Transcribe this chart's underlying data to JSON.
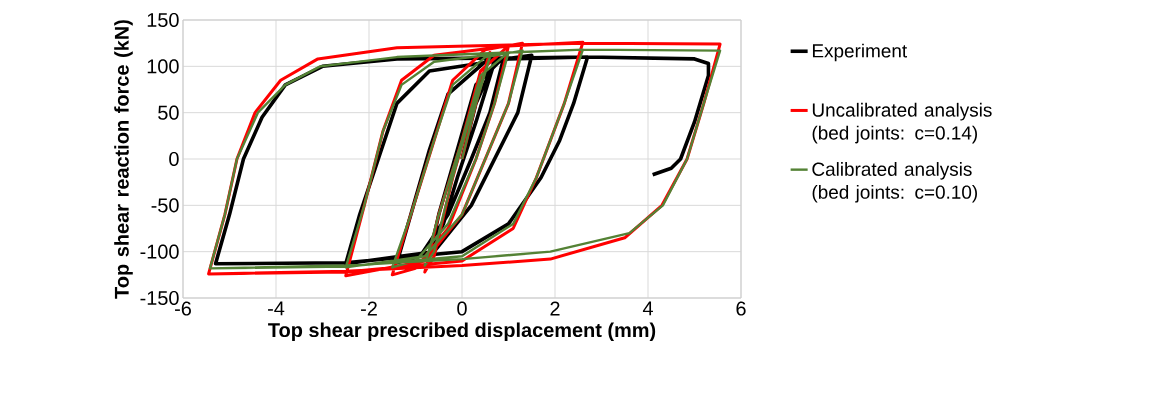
{
  "chart_data": {
    "type": "line",
    "xlabel": "Top shear prescribed displacement (mm)",
    "ylabel": "Top shear reaction force (kN)",
    "xlim": [
      -6,
      6
    ],
    "ylim": [
      -150,
      150
    ],
    "xticks": [
      -6,
      -4,
      -2,
      0,
      2,
      4,
      6
    ],
    "yticks": [
      -150,
      -100,
      -50,
      0,
      50,
      100,
      150
    ],
    "grid": true,
    "legend": "right",
    "marker": "none",
    "line_style": "solid",
    "series": [
      {
        "name": "Experiment",
        "color": "#000000",
        "x": [
          0,
          0.3,
          0.7,
          0.3,
          -0.1,
          -0.4,
          -0.7,
          -0.5,
          -0.1,
          0.3,
          0.9,
          0.6,
          0.2,
          -0.3,
          -0.9,
          -1.4,
          -1.1,
          -0.7,
          -0.3,
          0.5,
          1.5,
          1.2,
          0.2,
          -0.6,
          -2.5,
          -2.2,
          -1.8,
          -1.4,
          -0.7,
          1.0,
          2.7,
          2.4,
          2.1,
          1.7,
          1.0,
          0,
          -2.5,
          -5.3,
          -5.0,
          -4.7,
          -4.3,
          -3.8,
          -3.0,
          -1.4,
          1.0,
          2.7,
          5.0,
          5.3,
          5.3,
          5.0,
          4.7,
          4.5,
          4.1
        ],
        "values": [
          0,
          60,
          105,
          40,
          -20,
          -70,
          -105,
          -60,
          10,
          80,
          110,
          50,
          0,
          -60,
          -105,
          -112,
          -60,
          10,
          70,
          105,
          112,
          50,
          -50,
          -100,
          -113,
          -60,
          0,
          60,
          95,
          108,
          110,
          60,
          20,
          -20,
          -70,
          -100,
          -112,
          -113,
          -60,
          0,
          45,
          80,
          100,
          108,
          109,
          110,
          108,
          103,
          90,
          40,
          0,
          -10,
          -17
        ]
      },
      {
        "name": "Uncalibrated analysis (bed joints: c=0.14)",
        "color": "#ff0000",
        "x": [
          0,
          0.3,
          0.6,
          0.2,
          -0.2,
          -0.6,
          -0.8,
          -0.5,
          0,
          0.4,
          1.0,
          0.7,
          0.3,
          -0.3,
          -1.0,
          -1.5,
          -1.1,
          -0.6,
          -0.2,
          0.5,
          1.3,
          1.0,
          0,
          -0.8,
          -2.5,
          -2.1,
          -1.7,
          -1.3,
          -0.6,
          1.0,
          2.6,
          2.2,
          1.9,
          1.6,
          1.1,
          0,
          -2.5,
          -5.45,
          -5.1,
          -4.84,
          -4.45,
          -3.9,
          -3.1,
          -1.4,
          1.0,
          2.6,
          5.55,
          5.2,
          4.84,
          4.3,
          3.5,
          1.9,
          0,
          -2.5,
          -5.45
        ],
        "values": [
          0,
          60,
          115,
          50,
          -20,
          -105,
          -122,
          -60,
          20,
          95,
          122,
          60,
          0,
          -75,
          -118,
          -125,
          -60,
          20,
          85,
          118,
          125,
          60,
          -60,
          -110,
          -126,
          -50,
          30,
          85,
          112,
          122,
          126,
          60,
          20,
          -20,
          -75,
          -110,
          -122,
          -124,
          -60,
          0,
          50,
          85,
          108,
          120,
          123,
          125,
          124,
          60,
          0,
          -50,
          -85,
          -108,
          -115,
          -121,
          -124
        ]
      },
      {
        "name": "Calibrated analysis (bed joints: c=0.10)",
        "color": "#548235",
        "x": [
          0,
          0.3,
          0.6,
          0.2,
          -0.2,
          -0.6,
          -0.8,
          -0.5,
          0,
          0.4,
          1.0,
          0.7,
          0.3,
          -0.3,
          -1.0,
          -1.5,
          -1.1,
          -0.6,
          -0.2,
          0.5,
          1.3,
          1.0,
          0,
          -0.8,
          -2.5,
          -2.1,
          -1.7,
          -1.3,
          -0.6,
          1.0,
          2.6,
          2.2,
          1.9,
          1.6,
          1.1,
          0,
          -2.5,
          -5.42,
          -5.1,
          -4.84,
          -4.39,
          -3.8,
          -3.05,
          -1.4,
          1.0,
          2.6,
          5.55,
          5.2,
          4.84,
          4.32,
          3.6,
          1.9,
          0,
          -2.5,
          -5.42
        ],
        "values": [
          0,
          60,
          110,
          50,
          -20,
          -100,
          -115,
          -60,
          20,
          90,
          115,
          60,
          0,
          -70,
          -110,
          -117,
          -60,
          20,
          80,
          110,
          117,
          60,
          -60,
          -105,
          -117,
          -50,
          30,
          80,
          105,
          115,
          118,
          60,
          20,
          -20,
          -70,
          -105,
          -116,
          -118,
          -60,
          0,
          50,
          80,
          100,
          110,
          115,
          118,
          117,
          60,
          0,
          -50,
          -80,
          -100,
          -108,
          -115,
          -118
        ]
      }
    ]
  }
}
